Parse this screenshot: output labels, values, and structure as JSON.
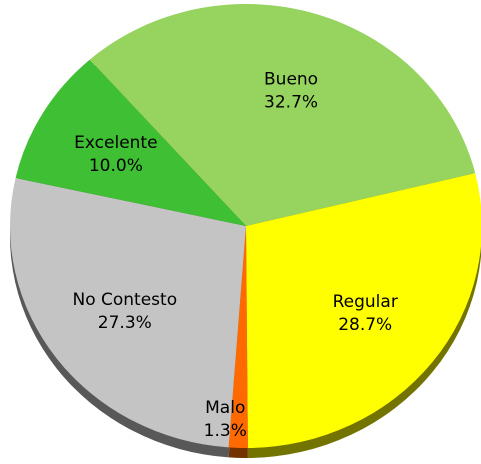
{
  "chart_data": {
    "type": "pie",
    "categories": [
      "Bueno",
      "Regular",
      "Malo",
      "No Contesto",
      "Excelente"
    ],
    "values": [
      32.7,
      28.7,
      1.3,
      27.3,
      10.0
    ],
    "value_labels": [
      "32.7%",
      "28.7%",
      "1.3%",
      "27.3%",
      "10.0%"
    ],
    "colors": [
      "#96d35f",
      "#ffff00",
      "#ff6a00",
      "#c4c4c4",
      "#3fbf34"
    ]
  }
}
